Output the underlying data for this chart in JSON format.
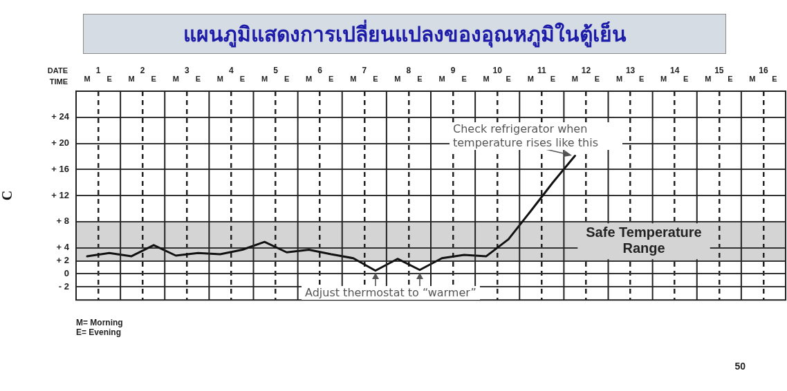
{
  "chart_data": {
    "type": "line",
    "title": "แผนภูมิแสดงการเปลี่ยนแปลงของอุณหภูมิในตู้เย็น",
    "xlabel": "TIME",
    "x2label": "DATE",
    "ylabel": "C",
    "categories": [
      "M",
      "E",
      "M",
      "E",
      "M",
      "E",
      "M",
      "E",
      "M",
      "E",
      "M",
      "E",
      "M",
      "E",
      "M",
      "E",
      "M",
      "E",
      "M",
      "E",
      "M",
      "E",
      "M",
      "E",
      "M",
      "E",
      "M",
      "E",
      "M",
      "E",
      "M",
      "E"
    ],
    "series": [
      {
        "color": "#111111",
        "values": [
          2.7,
          3.2,
          2.7,
          4.4,
          2.8,
          3.2,
          3.0,
          3.7,
          4.9,
          3.3,
          3.7,
          3.0,
          2.4,
          0.5,
          2.3,
          0.6,
          2.4,
          2.9,
          2.7,
          5.3,
          9.6,
          14.0,
          18.1,
          null,
          null,
          null,
          null,
          null,
          null,
          null,
          null,
          null
        ]
      }
    ],
    "x2lim": [
      0.5,
      16.5
    ],
    "x2ticks": [
      1,
      2,
      3,
      4,
      5,
      6,
      7,
      8,
      9,
      10,
      11,
      12,
      13,
      14,
      15,
      16
    ],
    "ylim": [
      -4,
      28
    ],
    "yticks": [
      {
        "value": 24,
        "label": "+ 24"
      },
      {
        "value": 20,
        "label": "+ 20"
      },
      {
        "value": 16,
        "label": "+ 16"
      },
      {
        "value": 12,
        "label": "+ 12"
      },
      {
        "value": 8,
        "label": "+ 8"
      },
      {
        "value": 4,
        "label": "+ 4"
      },
      {
        "value": 2,
        "label": "+ 2"
      },
      {
        "value": 0,
        "label": "0"
      },
      {
        "value": -2,
        "label": "- 2"
      }
    ],
    "bands": [
      {
        "axis": "y",
        "from": 2,
        "to": 8,
        "label": "Safe Temperature Range",
        "color": "#d4d4d4"
      }
    ],
    "annotations": [
      "Check refrigerator when temperature rises like this",
      "Adjust thermostat to “warmer”",
      "M= Morning",
      "E= Evening",
      "50"
    ],
    "grid": true,
    "legend": false,
    "marker": "none",
    "line_style": "solid"
  }
}
